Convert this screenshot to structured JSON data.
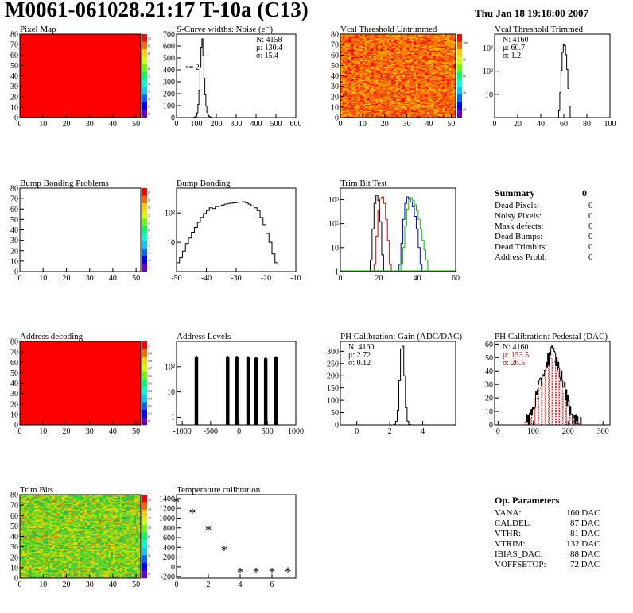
{
  "header": {
    "title": "M0061-061028.21:17 T-10a (C13)",
    "date": "Thu Jan 18 19:18:00 2007"
  },
  "summary": {
    "heading": "Summary",
    "heading_value": "0",
    "rows": [
      {
        "label": "Dead Pixels:",
        "value": "0"
      },
      {
        "label": "Noisy Pixels:",
        "value": "0"
      },
      {
        "label": "Mask defects:",
        "value": "0"
      },
      {
        "label": "Dead Bumps:",
        "value": "0"
      },
      {
        "label": "Dead Trimbits:",
        "value": "0"
      },
      {
        "label": "Address Probl:",
        "value": "0"
      }
    ]
  },
  "op_parameters": {
    "heading": "Op. Parameters",
    "rows": [
      {
        "label": "VANA:",
        "value": "160 DAC"
      },
      {
        "label": "CALDEL:",
        "value": "87 DAC"
      },
      {
        "label": "VTHR:",
        "value": "81 DAC"
      },
      {
        "label": "VTRIM:",
        "value": "132 DAC"
      },
      {
        "label": "IBIAS_DAC:",
        "value": "88 DAC"
      },
      {
        "label": "VOFFSETOP:",
        "value": "72 DAC"
      }
    ]
  },
  "colors": {
    "map_red": "#ff0000",
    "hist_black": "#000000",
    "trim_red": "#d40000",
    "trim_blue": "#0000cc",
    "trim_green": "#00c000",
    "pedestal_fill": "#cc0000"
  },
  "chart_data": [
    {
      "id": "pixel-map",
      "type": "heatmap",
      "title": "Pixel Map",
      "x_ticks": [
        "0",
        "10",
        "20",
        "30",
        "40",
        "50"
      ],
      "y_ticks": [
        "0",
        "10",
        "20",
        "30",
        "40",
        "50",
        "60",
        "70",
        "80"
      ],
      "xlim": [
        0,
        52
      ],
      "ylim": [
        0,
        80
      ],
      "fill": "uniform-red",
      "palette_ticks": [
        "10",
        "9",
        "8",
        "7",
        "6",
        "5",
        "4",
        "3",
        "2",
        "1",
        "0"
      ]
    },
    {
      "id": "scurve",
      "type": "histogram",
      "title": "S-Curve widths: Noise (e⁻)",
      "x_ticks": [
        "0",
        "100",
        "200",
        "300",
        "400",
        "500",
        "600"
      ],
      "y_ticks": [
        "0",
        "100",
        "200",
        "300",
        "400",
        "500",
        "600",
        "700"
      ],
      "xlim": [
        0,
        600
      ],
      "ylim": [
        0,
        700
      ],
      "annotation": "<= 2",
      "stats": [
        "N: 4158",
        "μ: 130.4",
        "σ: 15.4"
      ],
      "x": [
        90,
        95,
        100,
        105,
        110,
        115,
        120,
        125,
        130,
        135,
        140,
        145,
        150,
        155,
        160,
        165,
        170,
        175,
        180
      ],
      "values": [
        3,
        8,
        15,
        40,
        110,
        230,
        420,
        590,
        660,
        520,
        330,
        190,
        95,
        45,
        20,
        10,
        5,
        2,
        0
      ]
    },
    {
      "id": "vcal-untrimmed",
      "type": "heatmap",
      "title": "Vcal Threshold Untrimmed",
      "x_ticks": [
        "0",
        "10",
        "20",
        "30",
        "40",
        "50"
      ],
      "y_ticks": [
        "0",
        "10",
        "20",
        "30",
        "40",
        "50",
        "60",
        "70",
        "80"
      ],
      "xlim": [
        0,
        52
      ],
      "ylim": [
        0,
        80
      ],
      "fill": "noise-orange",
      "palette_ticks": [
        "100",
        "80",
        "60",
        "40",
        "20"
      ]
    },
    {
      "id": "vcal-trimmed",
      "type": "histogram",
      "title": "Vcal Threshold Trimmed",
      "log_y": true,
      "x_ticks": [
        "0",
        "20",
        "40",
        "60",
        "80",
        "100"
      ],
      "y_ticks": [
        "10",
        "10²",
        "10³"
      ],
      "xlim": [
        0,
        100
      ],
      "ylim": [
        1,
        4000
      ],
      "stats": [
        "N: 4160",
        "μ: 60.7",
        "σ:  1.2"
      ],
      "x": [
        56,
        57,
        58,
        59,
        60,
        61,
        62,
        63,
        64,
        65,
        66
      ],
      "values": [
        2,
        12,
        110,
        650,
        1400,
        1250,
        520,
        120,
        18,
        3,
        1
      ]
    },
    {
      "id": "bump-problems",
      "type": "heatmap",
      "title": "Bump Bonding Problems",
      "x_ticks": [
        "0",
        "10",
        "20",
        "30",
        "40",
        "50"
      ],
      "y_ticks": [
        "0",
        "10",
        "20",
        "30",
        "40",
        "50",
        "60",
        "70",
        "80"
      ],
      "xlim": [
        0,
        52
      ],
      "ylim": [
        0,
        80
      ],
      "fill": "empty",
      "palette_ticks": [
        "5",
        "4",
        "3",
        "2",
        "1",
        "0",
        "-1",
        "-2",
        "-3",
        "-4",
        "-5"
      ]
    },
    {
      "id": "bump-bonding",
      "type": "histogram",
      "title": "Bump Bonding",
      "log_y": true,
      "x_ticks": [
        "-50",
        "-40",
        "-30",
        "-20",
        "-10"
      ],
      "y_ticks": [
        "10",
        "10²"
      ],
      "xlim": [
        -50,
        -10
      ],
      "ylim": [
        1,
        700
      ],
      "x": [
        -49.5,
        -48.5,
        -47.5,
        -46.5,
        -45.5,
        -44.5,
        -43.5,
        -42.5,
        -41.5,
        -40.5,
        -39.5,
        -38.5,
        -37.5,
        -36.5,
        -35.5,
        -34.5,
        -33.5,
        -32.5,
        -31.5,
        -30.5,
        -29.5,
        -28.5,
        -27.5,
        -26.5,
        -25.5,
        -24.5,
        -23.5,
        -22.5,
        -21.5,
        -20.5,
        -19.5,
        -18.5,
        -17.5,
        -16.5
      ],
      "values": [
        2,
        3,
        5,
        9,
        14,
        22,
        32,
        48,
        70,
        95,
        120,
        150,
        140,
        165,
        170,
        185,
        200,
        210,
        215,
        220,
        230,
        235,
        240,
        225,
        200,
        175,
        150,
        120,
        70,
        40,
        20,
        10,
        4,
        2
      ]
    },
    {
      "id": "trim-bit-test",
      "type": "histogram",
      "title": "Trim Bit Test",
      "log_y": true,
      "x_ticks": [
        "0",
        "20",
        "40",
        "60"
      ],
      "y_ticks": [
        "1",
        "10",
        "10²",
        "10³"
      ],
      "xlim": [
        0,
        60
      ],
      "ylim": [
        1,
        3000
      ],
      "series": [
        {
          "color": "black",
          "x": [
            16,
            17,
            18,
            19,
            20,
            21,
            22
          ],
          "values": [
            3,
            60,
            700,
            1500,
            900,
            120,
            5
          ]
        },
        {
          "color": "red",
          "x": [
            18,
            19,
            20,
            21,
            22,
            23,
            24,
            25,
            26
          ],
          "values": [
            2,
            30,
            350,
            1100,
            1300,
            700,
            150,
            20,
            2
          ]
        },
        {
          "color": "blue",
          "x": [
            31,
            32,
            33,
            34,
            35,
            36,
            37,
            38,
            39,
            40,
            41,
            42
          ],
          "values": [
            2,
            15,
            150,
            700,
            1300,
            1100,
            800,
            500,
            200,
            60,
            10,
            2
          ]
        },
        {
          "color": "green",
          "x": [
            32,
            33,
            34,
            35,
            36,
            37,
            38,
            39,
            40,
            41,
            42,
            43,
            44,
            45,
            46
          ],
          "values": [
            2,
            10,
            80,
            400,
            1000,
            1200,
            900,
            600,
            350,
            150,
            60,
            20,
            8,
            3,
            1
          ]
        }
      ]
    },
    {
      "id": "address-decoding",
      "type": "heatmap",
      "title": "Address decoding",
      "x_ticks": [
        "0",
        "10",
        "20",
        "30",
        "40",
        "50"
      ],
      "y_ticks": [
        "0",
        "10",
        "20",
        "30",
        "40",
        "50",
        "60",
        "70",
        "80"
      ],
      "xlim": [
        0,
        52
      ],
      "ylim": [
        0,
        80
      ],
      "fill": "uniform-red",
      "palette_ticks": [
        "1",
        "0.9",
        "0.8",
        "0.7",
        "0.6",
        "0.5",
        "0.4",
        "0.3",
        "0.2",
        "0.1",
        "0"
      ]
    },
    {
      "id": "address-levels",
      "type": "histogram",
      "title": "Address Levels",
      "log_y": true,
      "x_ticks": [
        "-1000",
        "-500",
        "0",
        "500",
        "1000"
      ],
      "y_ticks": [
        "1",
        "10",
        "10²"
      ],
      "xlim": [
        -1100,
        1000
      ],
      "ylim": [
        0.5,
        1000
      ],
      "peaks": [
        {
          "center": -750,
          "height": 260
        },
        {
          "center": -200,
          "height": 260
        },
        {
          "center": -40,
          "height": 260
        },
        {
          "center": 160,
          "height": 250
        },
        {
          "center": 300,
          "height": 240
        },
        {
          "center": 470,
          "height": 230
        },
        {
          "center": 650,
          "height": 250
        }
      ]
    },
    {
      "id": "ph-gain",
      "type": "histogram",
      "title": "PH Calibration: Gain (ADC/DAC)",
      "x_ticks": [
        "0",
        "2",
        "4"
      ],
      "y_ticks": [
        "0",
        "50",
        "100",
        "150",
        "200",
        "250",
        "300"
      ],
      "xlim": [
        -1,
        6
      ],
      "ylim": [
        0,
        340
      ],
      "stats": [
        "N: 4160",
        "μ: 2.72",
        "σ: 0.12"
      ],
      "x": [
        2.3,
        2.4,
        2.5,
        2.6,
        2.7,
        2.8,
        2.9,
        3.0,
        3.1,
        3.2
      ],
      "values": [
        2,
        15,
        60,
        180,
        310,
        320,
        200,
        70,
        15,
        2
      ]
    },
    {
      "id": "ph-pedestal",
      "type": "histogram",
      "title": "PH Calibration: Pedestal (DAC)",
      "x_ticks": [
        "0",
        "100",
        "200",
        "300"
      ],
      "y_ticks": [
        "0",
        "10",
        "20",
        "30",
        "40",
        "50",
        "60"
      ],
      "xlim": [
        -10,
        320
      ],
      "ylim": [
        0,
        62
      ],
      "stats": [
        "N: 4160",
        "μ: 153.5",
        "σ: 26.5"
      ],
      "x": [
        80,
        90,
        100,
        110,
        120,
        130,
        140,
        150,
        160,
        170,
        180,
        190,
        200,
        210,
        220,
        230
      ],
      "values": [
        2,
        6,
        13,
        22,
        30,
        40,
        47,
        55,
        52,
        44,
        36,
        26,
        16,
        8,
        3,
        1
      ]
    },
    {
      "id": "trim-bits",
      "type": "heatmap",
      "title": "Trim Bits",
      "x_ticks": [
        "0",
        "10",
        "20",
        "30",
        "40",
        "50"
      ],
      "y_ticks": [
        "0",
        "10",
        "20",
        "30",
        "40",
        "50",
        "60",
        "70",
        "80"
      ],
      "xlim": [
        0,
        52
      ],
      "ylim": [
        0,
        80
      ],
      "fill": "noise-green",
      "palette_ticks": [
        "16",
        "14",
        "12",
        "10",
        "8",
        "6",
        "4",
        "2",
        "0"
      ]
    },
    {
      "id": "temperature",
      "type": "scatter",
      "title": "Temperature calibration",
      "x_ticks": [
        "0",
        "2",
        "4",
        "6"
      ],
      "y_ticks": [
        "-200",
        "0",
        "200",
        "400",
        "600",
        "800",
        "1000",
        "1200",
        "1400"
      ],
      "xlim": [
        0,
        7.5
      ],
      "ylim": [
        -230,
        1480
      ],
      "x": [
        0,
        1,
        2,
        3,
        4,
        5,
        6,
        7
      ],
      "values": [
        1330,
        1110,
        760,
        350,
        -100,
        -100,
        -100,
        -90
      ]
    }
  ]
}
